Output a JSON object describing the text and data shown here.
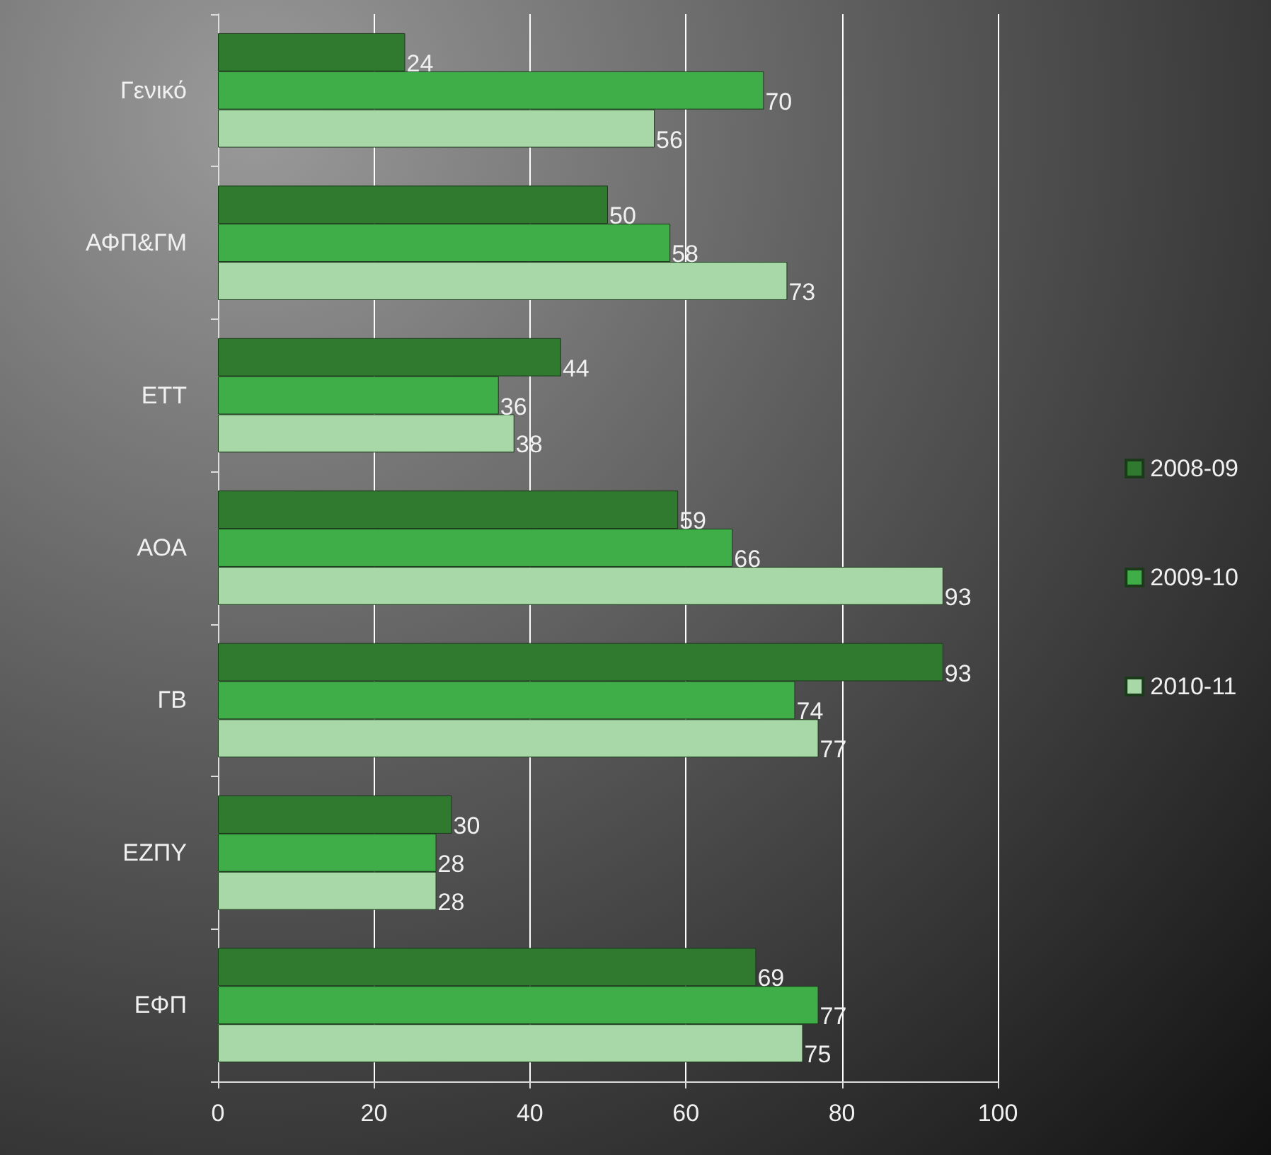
{
  "chart_data": {
    "type": "bar",
    "orientation": "horizontal",
    "categories": [
      "Γενικό",
      "ΑΦΠ&ΓΜ",
      "ΕΤΤ",
      "ΑΟΑ",
      "ΓΒ",
      "ΕΖΠΥ",
      "ΕΦΠ"
    ],
    "series": [
      {
        "name": "2008-09",
        "color": "#2f7a2f",
        "values": [
          24,
          50,
          44,
          59,
          93,
          30,
          69
        ]
      },
      {
        "name": "2009-10",
        "color": "#3fae48",
        "values": [
          70,
          58,
          36,
          66,
          74,
          28,
          77
        ]
      },
      {
        "name": "2010-11",
        "color": "#a8d8a8",
        "values": [
          56,
          73,
          38,
          93,
          77,
          28,
          75
        ]
      }
    ],
    "xlim": [
      0,
      100
    ],
    "xticks": [
      0,
      20,
      40,
      60,
      80,
      100
    ],
    "grid": "x",
    "legend": "right",
    "data_labels": true
  }
}
